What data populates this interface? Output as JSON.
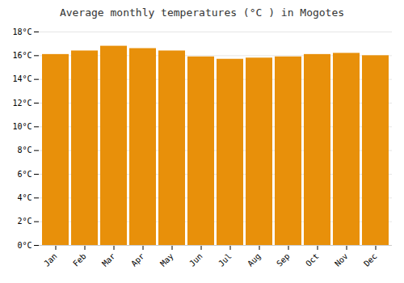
{
  "chart_data": {
    "type": "bar",
    "title": "Average monthly temperatures (°C ) in Mogotes",
    "categories": [
      "Jan",
      "Feb",
      "Mar",
      "Apr",
      "May",
      "Jun",
      "Jul",
      "Aug",
      "Sep",
      "Oct",
      "Nov",
      "Dec"
    ],
    "values": [
      16.1,
      16.4,
      16.8,
      16.6,
      16.4,
      15.9,
      15.7,
      15.8,
      15.9,
      16.1,
      16.2,
      16.0
    ],
    "color": "#E8900A",
    "ylim": [
      0,
      18
    ],
    "yticks": [
      {
        "value": 0,
        "label": "0°C"
      },
      {
        "value": 2,
        "label": "2°C"
      },
      {
        "value": 4,
        "label": "4°C"
      },
      {
        "value": 6,
        "label": "6°C"
      },
      {
        "value": 8,
        "label": "8°C"
      },
      {
        "value": 10,
        "label": "10°C"
      },
      {
        "value": 12,
        "label": "12°C"
      },
      {
        "value": 14,
        "label": "14°C"
      },
      {
        "value": 16,
        "label": "16°C"
      },
      {
        "value": 18,
        "label": "18°C"
      }
    ],
    "grid": true
  }
}
